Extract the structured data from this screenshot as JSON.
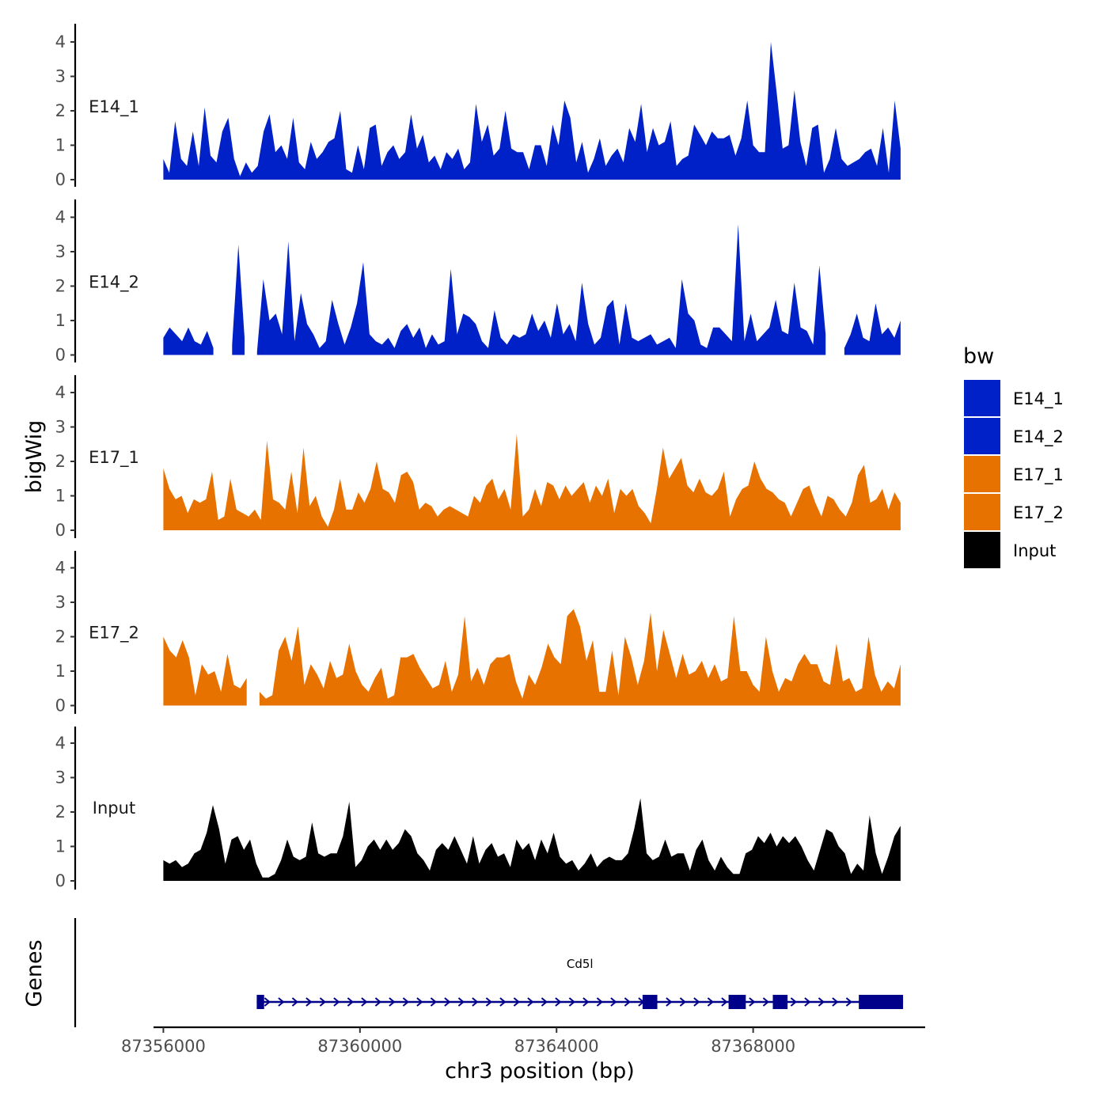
{
  "chart_data": {
    "type": "area",
    "y_axis_title": "bigWig",
    "genes_axis_title": "Genes",
    "xlabel": "chr3 position (bp)",
    "xlim": [
      87355800,
      87371500
    ],
    "x_ticks": [
      87356000,
      87360000,
      87364000,
      87368000
    ],
    "x_tick_labels": [
      "87356000",
      "87360000",
      "87364000",
      "87368000"
    ],
    "y_ticks": [
      0,
      1,
      2,
      3,
      4
    ],
    "y_tick_labels": [
      "0",
      "1",
      "2",
      "3",
      "4"
    ],
    "ylim": [
      0,
      4.5
    ],
    "data_start": 87356000,
    "data_end": 87371000,
    "legend": {
      "title": "bw",
      "items": [
        {
          "label": "E14_1",
          "color": "#0020C8"
        },
        {
          "label": "E14_2",
          "color": "#0020C8"
        },
        {
          "label": "E17_1",
          "color": "#E87200"
        },
        {
          "label": "E17_2",
          "color": "#E87200"
        },
        {
          "label": "Input",
          "color": "#000000"
        }
      ]
    },
    "series": [
      {
        "name": "E14_1",
        "color": "#0020C8",
        "values": [
          0.6,
          0.2,
          1.7,
          0.6,
          0.4,
          1.4,
          0.4,
          2.1,
          0.7,
          0.5,
          1.4,
          1.8,
          0.6,
          0.1,
          0.5,
          0.2,
          0.4,
          1.4,
          1.9,
          0.8,
          1.0,
          0.6,
          1.8,
          0.5,
          0.3,
          1.1,
          0.6,
          0.8,
          1.1,
          1.2,
          2.0,
          0.3,
          0.2,
          1.0,
          0.3,
          1.5,
          1.6,
          0.4,
          0.8,
          1.0,
          0.6,
          0.8,
          1.9,
          0.9,
          1.3,
          0.5,
          0.7,
          0.3,
          0.8,
          0.6,
          0.9,
          0.3,
          0.5,
          2.2,
          1.1,
          1.6,
          0.7,
          0.9,
          2.0,
          0.9,
          0.8,
          0.8,
          0.3,
          1.0,
          1.0,
          0.4,
          1.6,
          1.0,
          2.3,
          1.8,
          0.5,
          1.1,
          0.2,
          0.6,
          1.2,
          0.4,
          0.7,
          0.9,
          0.5,
          1.5,
          1.1,
          2.2,
          0.8,
          1.5,
          1.0,
          1.1,
          1.7,
          0.4,
          0.6,
          0.7,
          1.6,
          1.3,
          1.0,
          1.4,
          1.2,
          1.2,
          1.3,
          0.7,
          1.2,
          2.3,
          1.0,
          0.8,
          0.8,
          4.0,
          2.5,
          0.9,
          1.0,
          2.6,
          1.1,
          0.4,
          1.5,
          1.6,
          0.2,
          0.6,
          1.5,
          0.6,
          0.4,
          0.5,
          0.6,
          0.8,
          0.9,
          0.4,
          1.5,
          0.2,
          2.3,
          0.9
        ]
      },
      {
        "name": "E14_2",
        "color": "#0020C8",
        "values": [
          0.5,
          0.8,
          0.6,
          0.4,
          0.8,
          0.4,
          0.3,
          0.7,
          0.2,
          null,
          null,
          0.3,
          3.2,
          0.5,
          null,
          0.1,
          2.2,
          1.0,
          1.2,
          0.6,
          3.3,
          0.4,
          1.8,
          0.9,
          0.6,
          0.2,
          0.4,
          1.6,
          0.9,
          0.3,
          0.8,
          1.5,
          2.7,
          0.6,
          0.4,
          0.3,
          0.5,
          0.2,
          0.7,
          0.9,
          0.5,
          0.8,
          0.2,
          0.6,
          0.3,
          0.4,
          2.5,
          0.6,
          1.2,
          1.1,
          0.9,
          0.4,
          0.2,
          1.3,
          0.5,
          0.3,
          0.6,
          0.5,
          0.6,
          1.2,
          0.7,
          1.0,
          0.5,
          1.5,
          0.6,
          0.9,
          0.4,
          2.1,
          0.9,
          0.3,
          0.5,
          1.4,
          1.6,
          0.3,
          1.5,
          0.5,
          0.4,
          0.5,
          0.6,
          0.3,
          0.4,
          0.5,
          0.2,
          2.2,
          1.2,
          1.0,
          0.3,
          0.2,
          0.8,
          0.8,
          0.6,
          0.4,
          3.8,
          0.4,
          1.2,
          0.4,
          0.6,
          0.8,
          1.6,
          0.7,
          0.6,
          2.1,
          0.8,
          0.7,
          0.3,
          2.6,
          0.6,
          null,
          null,
          0.2,
          0.6,
          1.2,
          0.5,
          0.4,
          1.5,
          0.6,
          0.8,
          0.5,
          1.0
        ]
      },
      {
        "name": "E17_1",
        "color": "#E87200",
        "values": [
          1.8,
          1.2,
          0.9,
          1.0,
          0.5,
          0.9,
          0.8,
          0.9,
          1.7,
          0.3,
          0.4,
          1.5,
          0.6,
          0.5,
          0.4,
          0.6,
          0.3,
          2.6,
          0.9,
          0.8,
          0.6,
          1.7,
          0.5,
          2.4,
          0.7,
          1.0,
          0.4,
          0.1,
          0.6,
          1.5,
          0.6,
          0.6,
          1.1,
          0.8,
          1.2,
          2.0,
          1.2,
          1.1,
          0.8,
          1.6,
          1.7,
          1.4,
          0.6,
          0.8,
          0.7,
          0.4,
          0.6,
          0.7,
          0.6,
          0.5,
          0.4,
          1.0,
          0.8,
          1.3,
          1.5,
          0.9,
          1.2,
          0.6,
          2.8,
          0.4,
          0.6,
          1.2,
          0.7,
          1.4,
          1.3,
          0.9,
          1.3,
          1.0,
          1.2,
          1.4,
          0.8,
          1.3,
          1.0,
          1.5,
          0.5,
          1.2,
          1.0,
          1.2,
          0.7,
          0.5,
          0.2,
          1.2,
          2.4,
          1.5,
          1.8,
          2.1,
          1.3,
          1.1,
          1.5,
          1.1,
          1.0,
          1.2,
          1.7,
          0.4,
          0.9,
          1.2,
          1.3,
          2.0,
          1.5,
          1.2,
          1.1,
          0.9,
          0.8,
          0.4,
          0.8,
          1.2,
          1.3,
          0.8,
          0.4,
          1.0,
          0.9,
          0.6,
          0.4,
          0.8,
          1.6,
          1.9,
          0.8,
          0.9,
          1.2,
          0.6,
          1.1,
          0.8
        ]
      },
      {
        "name": "E17_2",
        "color": "#E87200",
        "values": [
          2.0,
          1.6,
          1.4,
          1.9,
          1.4,
          0.3,
          1.2,
          0.9,
          1.0,
          0.4,
          1.5,
          0.6,
          0.5,
          0.8,
          null,
          0.4,
          0.2,
          0.3,
          1.6,
          2.0,
          1.3,
          2.3,
          0.6,
          1.2,
          0.9,
          0.5,
          1.3,
          0.8,
          0.9,
          1.8,
          1.0,
          0.6,
          0.4,
          0.8,
          1.1,
          0.2,
          0.3,
          1.4,
          1.4,
          1.5,
          1.1,
          0.8,
          0.5,
          0.6,
          1.3,
          0.4,
          0.9,
          2.6,
          0.7,
          1.1,
          0.6,
          1.2,
          1.4,
          1.4,
          1.5,
          0.7,
          0.2,
          0.9,
          0.6,
          1.1,
          1.8,
          1.4,
          1.2,
          2.6,
          2.8,
          2.3,
          1.3,
          1.9,
          0.4,
          0.4,
          1.6,
          0.3,
          2.0,
          1.4,
          0.6,
          1.3,
          2.7,
          1.0,
          2.2,
          1.5,
          0.8,
          1.5,
          0.9,
          1.0,
          1.3,
          0.8,
          1.2,
          0.7,
          0.8,
          2.6,
          1.0,
          1.0,
          0.6,
          0.4,
          2.0,
          1.0,
          0.4,
          0.8,
          0.7,
          1.2,
          1.5,
          1.2,
          1.2,
          0.7,
          0.6,
          1.8,
          0.7,
          0.8,
          0.4,
          0.5,
          2.0,
          0.9,
          0.4,
          0.7,
          0.5,
          1.2
        ]
      },
      {
        "name": "Input",
        "color": "#000000",
        "values": [
          0.6,
          0.5,
          0.6,
          0.4,
          0.5,
          0.8,
          0.9,
          1.4,
          2.2,
          1.5,
          0.5,
          1.2,
          1.3,
          0.9,
          1.2,
          0.5,
          0.1,
          0.1,
          0.2,
          0.6,
          1.2,
          0.7,
          0.6,
          0.7,
          1.7,
          0.8,
          0.7,
          0.8,
          0.8,
          1.3,
          2.3,
          0.4,
          0.6,
          1.0,
          1.2,
          0.9,
          1.2,
          0.9,
          1.1,
          1.5,
          1.3,
          0.8,
          0.6,
          0.3,
          0.9,
          1.1,
          0.9,
          1.3,
          0.9,
          0.5,
          1.3,
          0.5,
          0.9,
          1.1,
          0.7,
          0.8,
          0.4,
          1.2,
          0.9,
          1.1,
          0.6,
          1.2,
          0.8,
          1.4,
          0.7,
          0.5,
          0.6,
          0.3,
          0.5,
          0.8,
          0.4,
          0.6,
          0.7,
          0.6,
          0.6,
          0.8,
          1.5,
          2.4,
          0.8,
          0.6,
          0.7,
          1.2,
          0.7,
          0.8,
          0.8,
          0.3,
          0.9,
          1.2,
          0.6,
          0.3,
          0.7,
          0.4,
          0.2,
          0.2,
          0.8,
          0.9,
          1.3,
          1.1,
          1.4,
          1.0,
          1.3,
          1.1,
          1.3,
          1.0,
          0.6,
          0.3,
          0.9,
          1.5,
          1.4,
          1.0,
          0.8,
          0.2,
          0.5,
          0.3,
          1.9,
          0.8,
          0.2,
          0.7,
          1.3,
          1.6
        ]
      }
    ],
    "genes": [
      {
        "name": "Cd5l",
        "start": 87357900,
        "end": 87371050,
        "strand": "+",
        "exons": [
          [
            87357900,
            87358050
          ],
          [
            87365750,
            87366050
          ],
          [
            87367500,
            87367850
          ],
          [
            87368400,
            87368700
          ],
          [
            87370150,
            87371050
          ]
        ]
      }
    ]
  }
}
